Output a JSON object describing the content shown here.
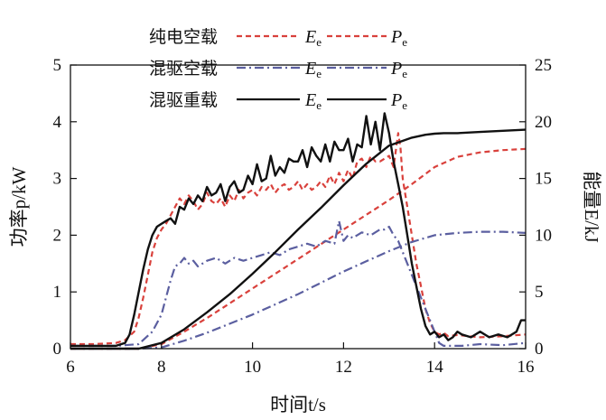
{
  "chart_data": {
    "type": "line",
    "xlabel": "时间t/s",
    "ylabel_left": "功率p/kW",
    "ylabel_right": "能量E/kJ",
    "xlim": [
      6,
      16
    ],
    "ylim_left": [
      0,
      5
    ],
    "ylim_right": [
      0,
      25
    ],
    "x_ticks": [
      "6",
      "8",
      "10",
      "12",
      "14",
      "16"
    ],
    "y_ticks_left": [
      "0",
      "1",
      "2",
      "3",
      "4",
      "5"
    ],
    "y_ticks_right": [
      "0",
      "5",
      "10",
      "15",
      "20",
      "25"
    ],
    "legend": {
      "placement": "top-left",
      "rows": [
        {
          "label": "纯电空载",
          "series_a": "E",
          "series_a_sub": "e",
          "series_b": "P",
          "series_b_sub": "e"
        },
        {
          "label": "混驱空载",
          "series_a": "E",
          "series_a_sub": "e",
          "series_b": "P",
          "series_b_sub": "e"
        },
        {
          "label": "混驱重载",
          "series_a": "E",
          "series_a_sub": "e",
          "series_b": "P",
          "series_b_sub": "e"
        }
      ]
    },
    "series": [
      {
        "name": "纯电空载 Pe",
        "axis": "left",
        "color": "#d9413c",
        "dash": "6,4",
        "x": [
          6.0,
          6.5,
          7.0,
          7.2,
          7.4,
          7.5,
          7.6,
          7.7,
          7.8,
          7.9,
          8.0,
          8.1,
          8.2,
          8.3,
          8.4,
          8.5,
          8.6,
          8.7,
          8.8,
          8.9,
          9.0,
          9.1,
          9.2,
          9.3,
          9.4,
          9.5,
          9.6,
          9.7,
          9.8,
          9.9,
          10.0,
          10.1,
          10.2,
          10.3,
          10.4,
          10.5,
          10.6,
          10.7,
          10.8,
          10.9,
          11.0,
          11.1,
          11.2,
          11.3,
          11.4,
          11.5,
          11.6,
          11.7,
          11.8,
          11.9,
          12.0,
          12.1,
          12.2,
          12.3,
          12.4,
          12.5,
          12.6,
          12.7,
          12.8,
          12.9,
          13.0,
          13.1,
          13.2,
          13.25,
          13.3,
          13.4,
          13.5,
          13.6,
          13.7,
          13.8,
          13.9,
          14.0,
          14.1,
          14.2,
          14.3,
          14.5,
          15.0,
          15.5,
          16.0
        ],
        "y": [
          0.08,
          0.08,
          0.1,
          0.15,
          0.3,
          0.55,
          0.9,
          1.3,
          1.7,
          1.95,
          2.1,
          2.2,
          2.35,
          2.5,
          2.65,
          2.55,
          2.7,
          2.6,
          2.45,
          2.55,
          2.75,
          2.6,
          2.55,
          2.65,
          2.5,
          2.7,
          2.6,
          2.8,
          2.65,
          2.75,
          2.8,
          2.7,
          2.85,
          2.8,
          2.9,
          2.75,
          2.85,
          2.9,
          2.8,
          2.85,
          2.95,
          2.8,
          2.9,
          2.8,
          2.85,
          2.95,
          2.85,
          3.05,
          2.9,
          3.1,
          2.95,
          3.15,
          3.0,
          3.3,
          3.35,
          3.2,
          3.4,
          3.3,
          3.3,
          3.35,
          3.4,
          3.2,
          3.8,
          3.55,
          3.0,
          2.5,
          2.0,
          1.5,
          1.1,
          0.7,
          0.45,
          0.3,
          0.25,
          0.28,
          0.22,
          0.24,
          0.2,
          0.22,
          0.25
        ]
      },
      {
        "name": "纯电空载 Ee",
        "axis": "right",
        "color": "#d9413c",
        "dash": "6,4",
        "x": [
          6.0,
          7.0,
          7.5,
          8.0,
          8.5,
          9.0,
          9.5,
          10.0,
          10.5,
          11.0,
          11.5,
          12.0,
          12.5,
          13.0,
          13.5,
          14.0,
          14.5,
          15.0,
          15.5,
          16.0
        ],
        "y": [
          0.0,
          0.0,
          0.0,
          0.4,
          1.5,
          2.7,
          4.0,
          5.3,
          6.6,
          7.9,
          9.2,
          10.5,
          11.8,
          13.1,
          14.5,
          16.0,
          16.9,
          17.3,
          17.5,
          17.6
        ]
      },
      {
        "name": "混驱空载 Pe",
        "axis": "left",
        "color": "#5b5fa0",
        "dash": "10,4,2,4",
        "x": [
          6.0,
          7.0,
          7.5,
          7.8,
          8.0,
          8.1,
          8.2,
          8.3,
          8.4,
          8.5,
          8.6,
          8.7,
          8.8,
          8.9,
          9.0,
          9.2,
          9.4,
          9.6,
          9.8,
          10.0,
          10.2,
          10.4,
          10.6,
          10.8,
          11.0,
          11.2,
          11.4,
          11.6,
          11.8,
          11.9,
          12.0,
          12.1,
          12.2,
          12.4,
          12.6,
          12.8,
          12.9,
          13.0,
          13.1,
          13.2,
          13.4,
          13.6,
          13.8,
          14.0,
          14.1,
          14.2,
          14.4,
          14.6,
          15.0,
          15.5,
          16.0
        ],
        "y": [
          0.05,
          0.05,
          0.08,
          0.3,
          0.6,
          0.9,
          1.2,
          1.45,
          1.5,
          1.6,
          1.5,
          1.55,
          1.45,
          1.5,
          1.55,
          1.6,
          1.5,
          1.6,
          1.55,
          1.6,
          1.65,
          1.7,
          1.65,
          1.75,
          1.8,
          1.85,
          1.8,
          1.9,
          1.85,
          2.25,
          1.9,
          2.0,
          1.95,
          2.05,
          2.0,
          2.1,
          2.1,
          2.15,
          2.0,
          1.9,
          1.5,
          1.1,
          0.7,
          0.3,
          0.1,
          0.05,
          0.05,
          0.05,
          0.08,
          0.06,
          0.1
        ]
      },
      {
        "name": "混驱空载 Ee",
        "axis": "right",
        "color": "#5b5fa0",
        "dash": "10,4,2,4",
        "x": [
          6.0,
          7.5,
          8.0,
          8.5,
          9.0,
          9.5,
          10.0,
          10.5,
          11.0,
          11.5,
          12.0,
          12.5,
          13.0,
          13.5,
          14.0,
          14.5,
          15.0,
          15.5,
          16.0
        ],
        "y": [
          0.0,
          0.0,
          0.1,
          0.7,
          1.4,
          2.2,
          3.0,
          3.9,
          4.8,
          5.8,
          6.8,
          7.7,
          8.6,
          9.4,
          10.0,
          10.2,
          10.3,
          10.3,
          10.2
        ]
      },
      {
        "name": "混驱重载 Pe",
        "axis": "left",
        "color": "#111111",
        "dash": "",
        "x": [
          6.0,
          7.0,
          7.2,
          7.3,
          7.4,
          7.5,
          7.6,
          7.7,
          7.8,
          7.9,
          8.0,
          8.1,
          8.2,
          8.3,
          8.4,
          8.5,
          8.6,
          8.7,
          8.8,
          8.9,
          9.0,
          9.1,
          9.2,
          9.3,
          9.4,
          9.5,
          9.6,
          9.7,
          9.8,
          9.9,
          10.0,
          10.1,
          10.2,
          10.3,
          10.4,
          10.5,
          10.6,
          10.7,
          10.8,
          10.9,
          11.0,
          11.1,
          11.2,
          11.3,
          11.4,
          11.5,
          11.6,
          11.7,
          11.8,
          11.9,
          12.0,
          12.1,
          12.2,
          12.3,
          12.4,
          12.5,
          12.6,
          12.7,
          12.8,
          12.9,
          13.0,
          13.1,
          13.2,
          13.3,
          13.4,
          13.5,
          13.6,
          13.7,
          13.8,
          13.9,
          14.0,
          14.1,
          14.2,
          14.3,
          14.4,
          14.5,
          14.6,
          14.8,
          15.0,
          15.2,
          15.4,
          15.6,
          15.8,
          15.9,
          16.0
        ],
        "y": [
          0.05,
          0.05,
          0.1,
          0.25,
          0.6,
          1.0,
          1.4,
          1.75,
          2.0,
          2.15,
          2.2,
          2.25,
          2.3,
          2.2,
          2.5,
          2.45,
          2.65,
          2.55,
          2.7,
          2.6,
          2.85,
          2.7,
          2.75,
          2.9,
          2.6,
          2.85,
          2.95,
          2.75,
          2.8,
          3.05,
          2.9,
          3.25,
          2.95,
          3.0,
          3.4,
          3.05,
          3.2,
          3.1,
          3.35,
          3.3,
          3.3,
          3.5,
          3.2,
          3.55,
          3.4,
          3.3,
          3.6,
          3.3,
          3.65,
          3.5,
          3.5,
          3.7,
          3.3,
          3.6,
          3.55,
          4.1,
          3.6,
          4.0,
          3.5,
          4.15,
          3.8,
          3.3,
          2.9,
          2.5,
          2.0,
          1.5,
          1.1,
          0.7,
          0.4,
          0.25,
          0.3,
          0.2,
          0.25,
          0.15,
          0.2,
          0.3,
          0.25,
          0.2,
          0.3,
          0.2,
          0.25,
          0.2,
          0.3,
          0.5,
          0.5
        ]
      },
      {
        "name": "混驱重载 Ee",
        "axis": "right",
        "color": "#111111",
        "dash": "",
        "x": [
          6.0,
          7.5,
          8.0,
          8.5,
          9.0,
          9.5,
          10.0,
          10.5,
          11.0,
          11.5,
          12.0,
          12.5,
          13.0,
          13.5,
          13.8,
          14.0,
          14.2,
          14.5,
          15.0,
          15.5,
          16.0
        ],
        "y": [
          0.0,
          0.0,
          0.5,
          1.7,
          3.2,
          4.8,
          6.6,
          8.5,
          10.5,
          12.4,
          14.4,
          16.3,
          17.9,
          18.6,
          18.85,
          18.95,
          19.0,
          19.0,
          19.1,
          19.2,
          19.3
        ]
      }
    ]
  }
}
